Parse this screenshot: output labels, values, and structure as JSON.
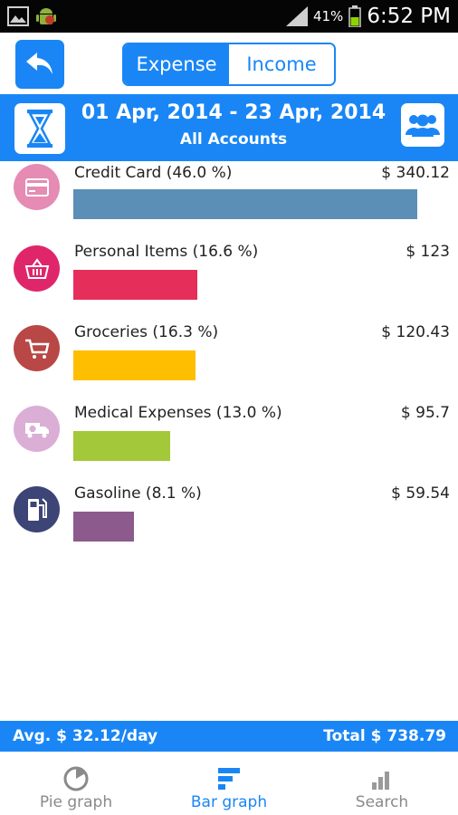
{
  "status": {
    "battery": "41%",
    "time": "6:52 PM"
  },
  "toolbar": {
    "tabs": [
      "Expense",
      "Income"
    ],
    "active_tab": "Expense"
  },
  "header": {
    "date_range": "01 Apr, 2014 - 23 Apr, 2014",
    "account_scope": "All Accounts"
  },
  "categories": [
    {
      "label": "Credit Card (46.0 %)",
      "amount": "$ 340.12",
      "share": 0.46,
      "color": "#5b8fb5",
      "icon_color": "#e58bb4",
      "icon": "credit-card-icon"
    },
    {
      "label": "Personal Items (16.6 %)",
      "amount": "$ 123",
      "share": 0.166,
      "color": "#e52f5a",
      "icon_color": "#e0266a",
      "icon": "basket-icon"
    },
    {
      "label": "Groceries (16.3 %)",
      "amount": "$ 120.43",
      "share": 0.163,
      "color": "#ffbe00",
      "icon_color": "#b84746",
      "icon": "cart-icon"
    },
    {
      "label": "Medical Expenses (13.0 %)",
      "amount": "$ 95.7",
      "share": 0.13,
      "color": "#a3c93a",
      "icon_color": "#dbaed6",
      "icon": "ambulance-icon"
    },
    {
      "label": "Gasoline (8.1 %)",
      "amount": "$ 59.54",
      "share": 0.081,
      "color": "#8c5a8d",
      "icon_color": "#3d4476",
      "icon": "fuel-pump-icon"
    }
  ],
  "summary": {
    "avg": "Avg. $ 32.12/day",
    "total": "Total $ 738.79"
  },
  "nav": [
    {
      "label": "Pie graph",
      "icon": "pie-graph-icon",
      "active": false
    },
    {
      "label": "Bar graph",
      "icon": "bar-graph-icon",
      "active": true
    },
    {
      "label": "Search",
      "icon": "search-icon",
      "active": false
    }
  ],
  "colors": {
    "accent": "#1a86f5",
    "status_bar": "#050505"
  }
}
